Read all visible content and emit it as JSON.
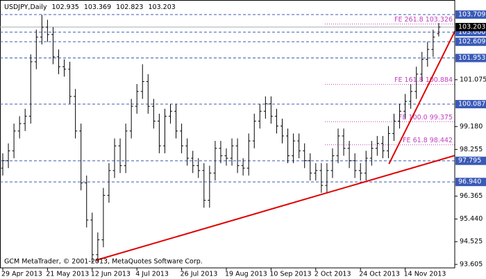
{
  "chart_data": {
    "type": "ohlc",
    "title": "USDJPY,Daily",
    "categories": [
      "29 Apr 2013",
      null,
      null,
      null,
      null,
      null,
      null,
      null,
      "21 May 2013",
      null,
      null,
      null,
      null,
      null,
      null,
      null,
      "12 Jun 2013",
      null,
      null,
      null,
      null,
      null,
      null,
      null,
      "4 Jul 2013",
      null,
      null,
      null,
      null,
      null,
      null,
      null,
      "26 Jul 2013",
      null,
      null,
      null,
      null,
      null,
      null,
      null,
      "19 Aug 2013",
      null,
      null,
      null,
      null,
      null,
      null,
      null,
      "10 Sep 2013",
      null,
      null,
      null,
      null,
      null,
      null,
      null,
      "2 Oct 2013",
      null,
      null,
      null,
      null,
      null,
      null,
      null,
      "24 Oct 2013",
      null,
      null,
      null,
      null,
      null,
      null,
      null,
      "14 Nov 2013",
      null,
      null,
      null,
      null,
      null,
      null
    ],
    "series": {
      "open": [
        97.5,
        97.8,
        98.2,
        99.0,
        99.3,
        99.6,
        101.8,
        102.8,
        103.2,
        102.9,
        102.0,
        101.6,
        101.5,
        100.4,
        99.0,
        96.9,
        95.4,
        94.0,
        94.6,
        96.4,
        97.4,
        98.4,
        97.6,
        99.0,
        100.0,
        100.6,
        101.0,
        100.0,
        99.4,
        98.4,
        99.6,
        99.8,
        99.0,
        98.4,
        97.9,
        97.6,
        97.4,
        96.2,
        97.3,
        98.3,
        98.0,
        97.9,
        98.4,
        97.6,
        97.5,
        98.6,
        99.4,
        99.8,
        100.1,
        99.6,
        99.2,
        98.8,
        98.0,
        98.6,
        98.2,
        97.8,
        97.3,
        97.4,
        96.8,
        97.4,
        98.0,
        98.8,
        98.3,
        97.8,
        97.4,
        97.3,
        97.9,
        98.3,
        98.5,
        98.2,
        98.9,
        99.4,
        99.8,
        100.2,
        100.6,
        101.3,
        101.9,
        102.3,
        102.935
      ],
      "high": [
        98.1,
        98.5,
        99.3,
        99.6,
        99.9,
        102.1,
        103.1,
        103.7,
        103.5,
        103.2,
        102.3,
        101.9,
        101.8,
        100.7,
        99.3,
        97.2,
        95.7,
        94.9,
        96.7,
        97.7,
        98.7,
        98.7,
        99.3,
        100.3,
        100.9,
        101.7,
        101.3,
        100.3,
        99.7,
        99.9,
        100.1,
        100.1,
        99.3,
        98.7,
        98.2,
        97.9,
        97.7,
        97.6,
        98.6,
        98.6,
        98.3,
        98.7,
        98.7,
        97.9,
        98.9,
        99.7,
        100.1,
        100.4,
        100.4,
        99.9,
        99.5,
        99.1,
        98.9,
        98.9,
        98.5,
        98.1,
        97.7,
        97.7,
        97.7,
        98.3,
        99.1,
        99.1,
        98.6,
        98.1,
        97.7,
        98.2,
        98.6,
        98.8,
        98.8,
        99.2,
        99.7,
        100.1,
        100.5,
        100.9,
        101.6,
        102.2,
        102.6,
        103.1,
        103.369
      ],
      "low": [
        97.2,
        97.5,
        97.9,
        98.7,
        99.0,
        99.3,
        101.5,
        102.5,
        102.6,
        101.7,
        101.3,
        101.2,
        100.1,
        98.7,
        96.6,
        95.1,
        93.7,
        93.7,
        94.3,
        96.1,
        97.1,
        97.3,
        97.3,
        98.7,
        99.7,
        100.3,
        99.7,
        99.1,
        98.1,
        98.1,
        99.3,
        98.7,
        98.1,
        97.6,
        97.3,
        97.1,
        95.9,
        95.9,
        97.0,
        97.7,
        97.6,
        97.6,
        97.3,
        97.2,
        97.2,
        98.3,
        99.1,
        99.5,
        99.3,
        98.9,
        98.5,
        97.7,
        97.7,
        97.9,
        97.5,
        97.0,
        97.0,
        96.5,
        96.5,
        97.1,
        97.7,
        98.0,
        97.5,
        97.1,
        97.0,
        97.0,
        97.6,
        98.0,
        97.9,
        97.9,
        98.6,
        99.1,
        99.5,
        99.9,
        100.3,
        101.0,
        101.6,
        102.0,
        102.823
      ],
      "close": [
        97.8,
        98.2,
        99.0,
        99.3,
        99.6,
        101.8,
        102.8,
        103.2,
        102.9,
        102.0,
        101.6,
        101.5,
        100.4,
        99.0,
        96.9,
        95.4,
        94.0,
        94.6,
        96.4,
        97.4,
        98.4,
        97.6,
        99.0,
        100.0,
        100.6,
        101.0,
        100.0,
        99.4,
        98.4,
        99.6,
        99.8,
        99.0,
        98.4,
        97.9,
        97.6,
        97.4,
        96.2,
        97.3,
        98.3,
        98.0,
        97.9,
        98.4,
        97.6,
        97.5,
        98.6,
        99.4,
        99.8,
        100.1,
        99.6,
        99.2,
        98.8,
        98.0,
        98.6,
        98.2,
        97.8,
        97.3,
        97.4,
        96.8,
        97.4,
        98.0,
        98.8,
        98.3,
        97.8,
        97.4,
        97.3,
        97.9,
        98.3,
        98.5,
        98.2,
        98.9,
        99.4,
        99.8,
        100.2,
        100.6,
        101.3,
        101.9,
        102.3,
        102.8,
        103.203
      ]
    },
    "color": "#000000",
    "ylim": [
      93.465,
      104.298
    ],
    "yticks": [
      101.075,
      {
        "value": 99.18,
        "label": "99.180"
      },
      98.255,
      96.365,
      {
        "value": 95.44,
        "label": "95.440"
      },
      94.525,
      93.605
    ],
    "levels": [
      103.709,
      {
        "value": 103,
        "label": "103.000"
      },
      102.609,
      101.953,
      100.087,
      97.795,
      {
        "value": 96.94,
        "label": "96.940"
      }
    ],
    "level_color": "#3a5ab8",
    "price_line_color": "#a8a8a8",
    "fibonacci": [
      {
        "label": "FE 261.8 103.326",
        "value": 103.326
      },
      {
        "label": "FE 161.8 100.884",
        "value": 100.884
      },
      {
        "label": "FE 100.0 99.375",
        "value": 99.375
      },
      {
        "label": "FE 61.8 98.442",
        "value": 98.442
      }
    ],
    "fibonacci_color": "#c040c0",
    "trendlines": [
      {
        "x": [
          16.6,
          80.9
        ],
        "y": [
          93.77,
          98.01
        ]
      },
      {
        "x": [
          69.1,
          80.9
        ],
        "y": [
          97.67,
          103.04
        ]
      }
    ],
    "trendline_color": "#e00000",
    "footer": "GCM MetaTrader, © 2001-2013, MetaQuotes Software Corp."
  }
}
